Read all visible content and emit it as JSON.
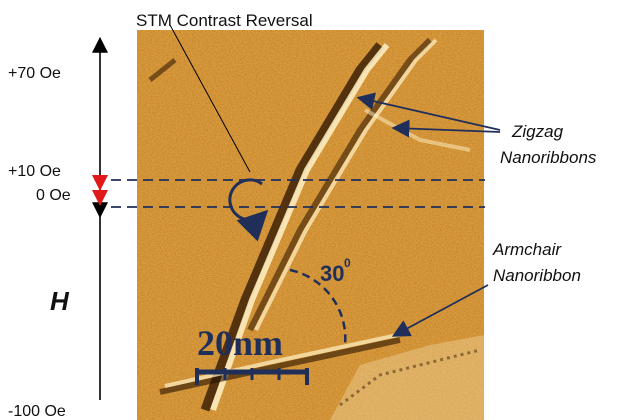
{
  "title": "STM Contrast Reversal",
  "field_axis": {
    "label": "H",
    "ticks": [
      "+70 Oe",
      "+10 Oe",
      "0 Oe",
      "-100 Oe"
    ]
  },
  "annotations": {
    "zigzag": [
      "Zigzag",
      "Nanoribbons"
    ],
    "armchair": [
      "Armchair",
      "Nanoribbon"
    ],
    "angle": "30",
    "angle_unit": "0"
  },
  "scale_bar": {
    "label": "20nm"
  },
  "colors": {
    "stm_base": "#c8801e",
    "arrow_navy": "#1f2f5a",
    "highlight_red": "#e01a1a"
  }
}
